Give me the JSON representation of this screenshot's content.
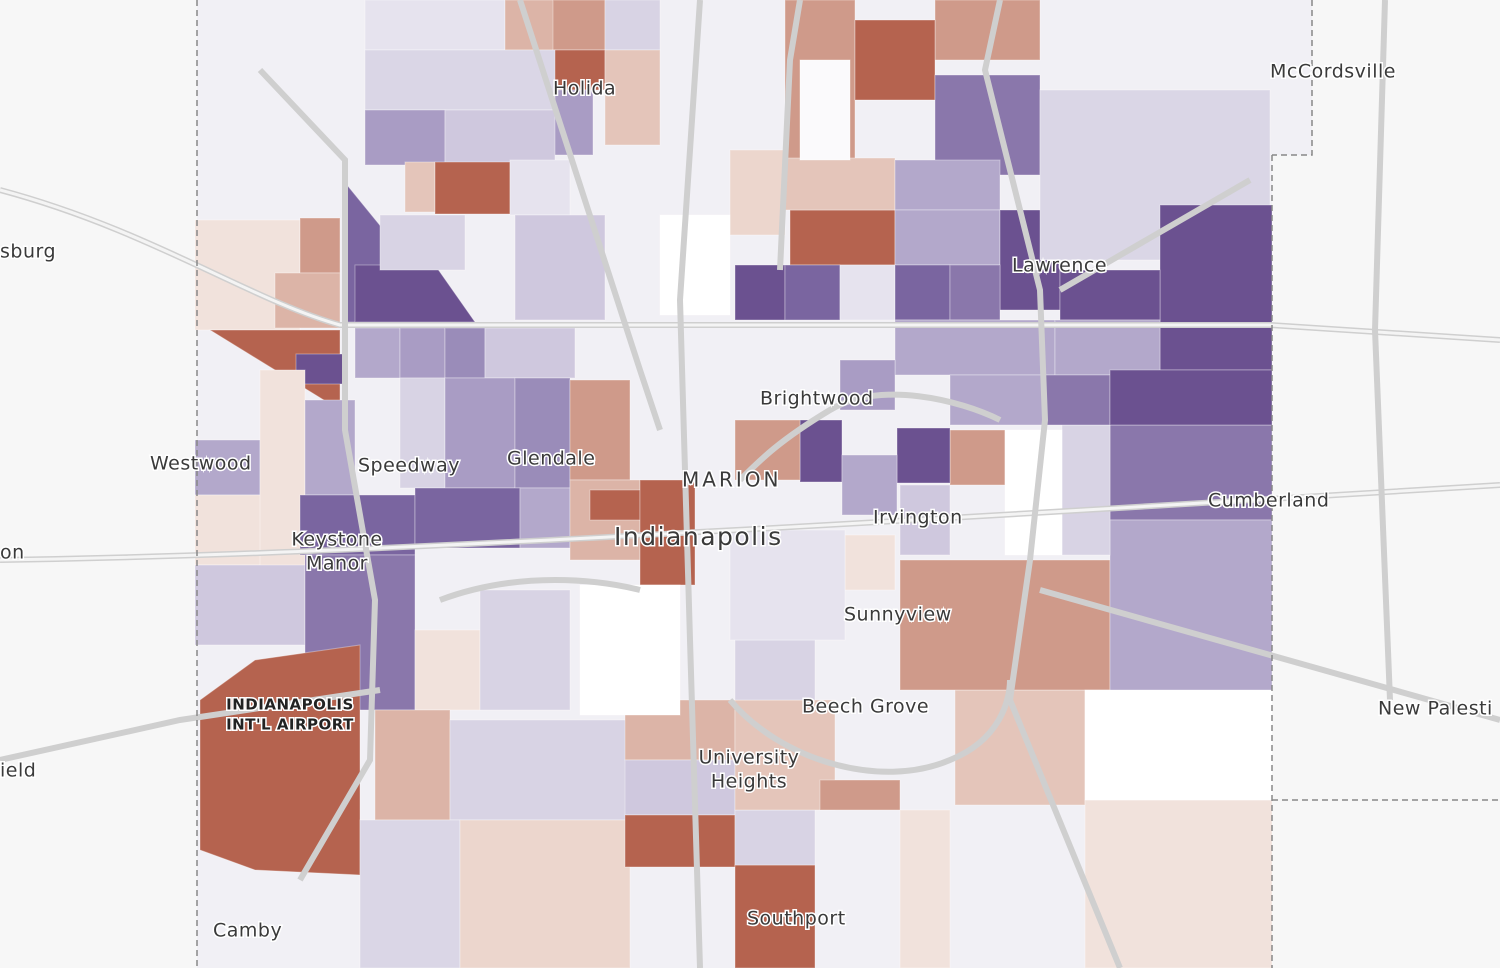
{
  "labels": {
    "holida": "Holida",
    "mccordsville": "McCordsville",
    "sburg": "sburg",
    "lawrence": "Lawrence",
    "brightwood": "Brightwood",
    "westwood": "Westwood",
    "speedway": "Speedway",
    "glendale": "Glendale",
    "marion": "MARION",
    "indianapolis": "Indianapolis",
    "irvington": "Irvington",
    "cumberland": "Cumberland",
    "keystone": [
      "Keystone",
      "Manor"
    ],
    "on": "on",
    "sunnyview": "Sunnyview",
    "airport": [
      "INDIANAPOLIS",
      "INT'L AIRPORT"
    ],
    "new_palestine": "New Palesti",
    "beech_grove": "Beech Grove",
    "university_heights": [
      "University",
      "Heights"
    ],
    "ield": "ield",
    "southport": "Southport",
    "camby": "Camby"
  }
}
